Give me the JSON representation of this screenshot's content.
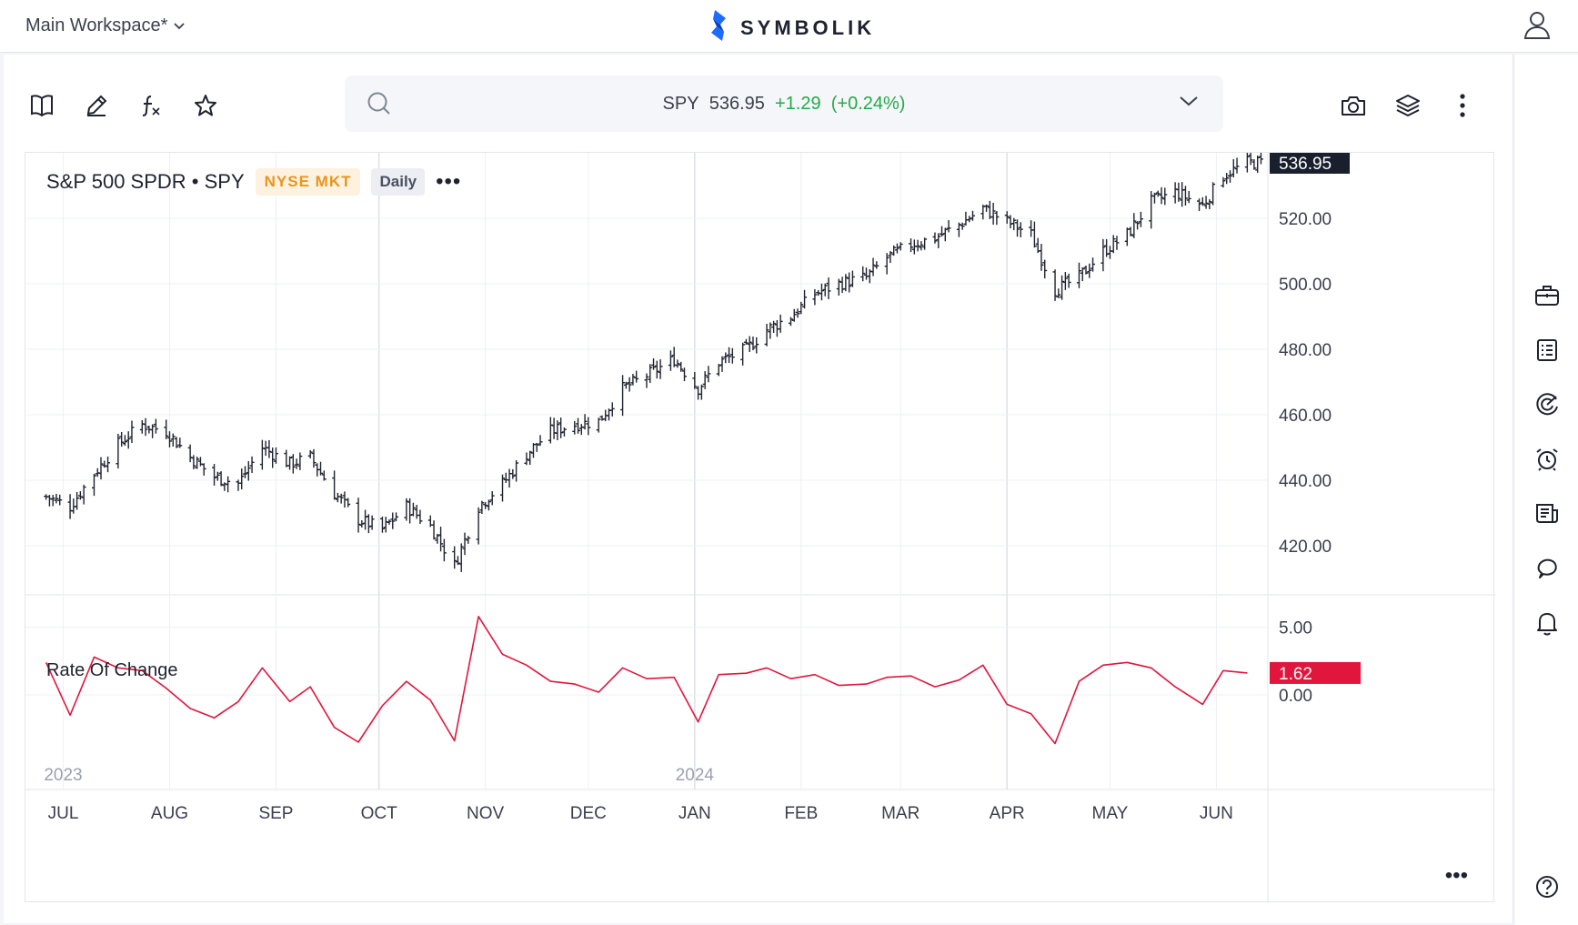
{
  "header": {
    "workspace_label": "Main Workspace*",
    "brand_name": "SYMBOLIK"
  },
  "toolbar": {
    "icons": [
      "book-icon",
      "pencil-icon",
      "function-icon",
      "star-icon",
      "camera-icon",
      "layers-icon",
      "kebab-menu-icon"
    ]
  },
  "search": {
    "symbol": "SPY",
    "price": "536.95",
    "change": "+1.29",
    "change_pct": "(+0.24%)"
  },
  "legend": {
    "name": "S&P 500 SPDR • SPY",
    "exchange": "NYSE MKT",
    "interval": "Daily",
    "more": "•••"
  },
  "indicator": {
    "label": "Rate Of Change",
    "last_value_label": "1.62"
  },
  "colors": {
    "accent_blue": "#1e6bff",
    "price_bar": "#1f2330",
    "roc_line": "#e0163c",
    "up_green": "#27a84a",
    "exchange_orange": "#e8951c"
  },
  "sidebar": {
    "icons": [
      "briefcase-icon",
      "list-icon",
      "radar-icon",
      "alarm-clock-icon",
      "news-icon",
      "chat-icon",
      "bell-icon",
      "help-icon"
    ]
  },
  "chart_data": [
    {
      "type": "ohlc",
      "title": "S&P 500 SPDR • SPY",
      "interval": "Daily",
      "last_value": 536.95,
      "last_value_label": "536.95",
      "ylim": [
        405,
        540
      ],
      "y_ticks": [
        420,
        440,
        460,
        480,
        500,
        520
      ],
      "y_tick_labels": [
        "420.00",
        "440.00",
        "460.00",
        "480.00",
        "500.00",
        "520.00"
      ],
      "x_ticks": [
        "JUL",
        "AUG",
        "SEP",
        "OCT",
        "NOV",
        "DEC",
        "JAN",
        "FEB",
        "MAR",
        "APR",
        "MAY",
        "JUN"
      ],
      "year_labels": [
        {
          "label": "2023",
          "month": "JUL"
        },
        {
          "label": "2024",
          "month": "JAN"
        }
      ],
      "grid": true,
      "series": [
        {
          "x": [
            "2023-06-26",
            "2023-07-03",
            "2023-07-10",
            "2023-07-17",
            "2023-07-24",
            "2023-07-31",
            "2023-08-07",
            "2023-08-14",
            "2023-08-21",
            "2023-08-28",
            "2023-09-05",
            "2023-09-11",
            "2023-09-18",
            "2023-09-25",
            "2023-10-02",
            "2023-10-09",
            "2023-10-16",
            "2023-10-23",
            "2023-10-30",
            "2023-11-06",
            "2023-11-13",
            "2023-11-20",
            "2023-11-27",
            "2023-12-04",
            "2023-12-11",
            "2023-12-18",
            "2023-12-26",
            "2024-01-02",
            "2024-01-08",
            "2024-01-16",
            "2024-01-22",
            "2024-01-29",
            "2024-02-05",
            "2024-02-12",
            "2024-02-20",
            "2024-02-26",
            "2024-03-04",
            "2024-03-11",
            "2024-03-18",
            "2024-03-25",
            "2024-04-01",
            "2024-04-08",
            "2024-04-15",
            "2024-04-22",
            "2024-04-29",
            "2024-05-06",
            "2024-05-13",
            "2024-05-20",
            "2024-05-28",
            "2024-06-03",
            "2024-06-10"
          ],
          "close": [
            435,
            432,
            442,
            451,
            457,
            455,
            447,
            441,
            439,
            450,
            445,
            447,
            436,
            428,
            425,
            432,
            426,
            414,
            432,
            439,
            448,
            455,
            457,
            458,
            468,
            472,
            477,
            468,
            476,
            480,
            486,
            490,
            497,
            500,
            502,
            508,
            512,
            514,
            518,
            523,
            519,
            515,
            498,
            502,
            510,
            515,
            525,
            528,
            524,
            533,
            537
          ]
        }
      ]
    },
    {
      "type": "line",
      "title": "Rate Of Change",
      "ylim": [
        -7,
        7
      ],
      "y_ticks": [
        0,
        5
      ],
      "y_tick_labels": [
        "0.00",
        "5.00"
      ],
      "last_value": 1.62,
      "last_value_label": "1.62",
      "series": [
        {
          "name": "Rate Of Change",
          "x": [
            "2023-06-26",
            "2023-07-03",
            "2023-07-10",
            "2023-07-17",
            "2023-07-24",
            "2023-07-31",
            "2023-08-07",
            "2023-08-14",
            "2023-08-21",
            "2023-08-28",
            "2023-09-05",
            "2023-09-11",
            "2023-09-18",
            "2023-09-25",
            "2023-10-02",
            "2023-10-09",
            "2023-10-16",
            "2023-10-23",
            "2023-10-30",
            "2023-11-06",
            "2023-11-13",
            "2023-11-20",
            "2023-11-27",
            "2023-12-04",
            "2023-12-11",
            "2023-12-18",
            "2023-12-26",
            "2024-01-02",
            "2024-01-08",
            "2024-01-16",
            "2024-01-22",
            "2024-01-29",
            "2024-02-05",
            "2024-02-12",
            "2024-02-20",
            "2024-02-26",
            "2024-03-04",
            "2024-03-11",
            "2024-03-18",
            "2024-03-25",
            "2024-04-01",
            "2024-04-08",
            "2024-04-15",
            "2024-04-22",
            "2024-04-29",
            "2024-05-06",
            "2024-05-13",
            "2024-05-20",
            "2024-05-28",
            "2024-06-03",
            "2024-06-10"
          ],
          "values": [
            2.4,
            -1.5,
            2.8,
            2.0,
            1.8,
            0.5,
            -1.0,
            -1.7,
            -0.5,
            2.0,
            -0.5,
            0.6,
            -2.4,
            -3.5,
            -0.8,
            1.0,
            -0.4,
            -3.4,
            5.8,
            3.0,
            2.2,
            1.0,
            0.8,
            0.2,
            2.0,
            1.2,
            1.3,
            -2.0,
            1.5,
            1.6,
            2.0,
            1.2,
            1.5,
            0.7,
            0.8,
            1.3,
            1.4,
            0.6,
            1.1,
            2.2,
            -0.7,
            -1.4,
            -3.6,
            1.0,
            2.2,
            2.4,
            2.0,
            0.6,
            -0.7,
            1.8,
            1.62
          ]
        }
      ]
    }
  ]
}
